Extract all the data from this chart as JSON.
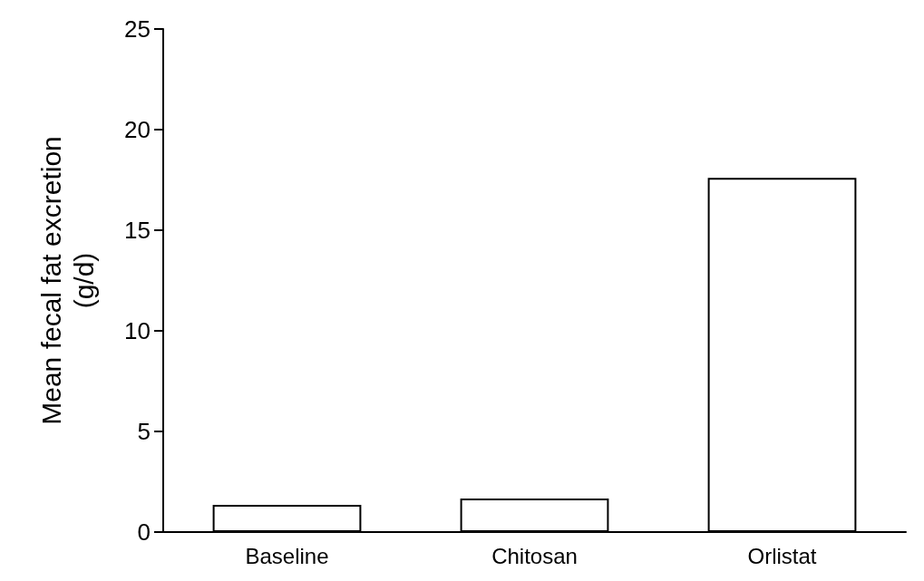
{
  "chart_data": {
    "type": "bar",
    "ylabel": "Mean fecal fat excretion\n(g/d)",
    "categories": [
      "Baseline",
      "Chitosan",
      "Orlistat"
    ],
    "values": [
      1.35,
      1.67,
      17.6
    ],
    "color": "#ffffff",
    "ylim": [
      0,
      25
    ],
    "yticks": [
      0,
      5,
      10,
      15,
      20,
      25
    ],
    "grid": false
  }
}
